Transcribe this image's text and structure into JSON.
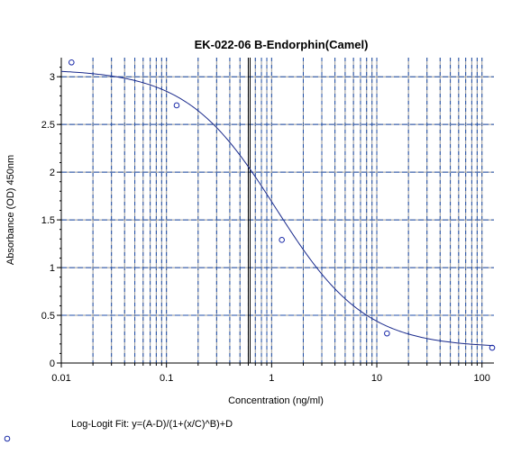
{
  "chart_data": {
    "type": "scatter",
    "title": "EK-022-06 B-Endorphin(Camel)",
    "xlabel": "Concentration (ng/ml)",
    "ylabel": "Absorbance (OD) 450nm",
    "x_scale": "log",
    "xlim": [
      0.01,
      130
    ],
    "ylim": [
      0,
      3.2
    ],
    "x_ticks": [
      "0.01",
      "0.1",
      "1",
      "10",
      "100"
    ],
    "y_ticks": [
      "0",
      "0.5",
      "1",
      "1.5",
      "2",
      "2.5",
      "3"
    ],
    "grid": true,
    "series": [
      {
        "points": [
          {
            "x": 0.0125,
            "y": 3.15
          },
          {
            "x": 0.125,
            "y": 2.7
          },
          {
            "x": 1.25,
            "y": 1.29
          },
          {
            "x": 12.5,
            "y": 0.31
          },
          {
            "x": 125,
            "y": 0.16
          }
        ]
      }
    ],
    "fit": {
      "equation": "Log-Logit Fit: y=(A-D)/(1+(x/C)^B)+D",
      "A": 3.08,
      "B": 1.02,
      "C": 1.1,
      "D": 0.16
    },
    "vertical_marker_x": 0.6
  },
  "colors": {
    "grid_blue": "#1f4ea8",
    "grid_gray": "#9a9a9a",
    "curve": "#1a2a8c",
    "points": "#1a2aa8",
    "axis": "#000000"
  }
}
